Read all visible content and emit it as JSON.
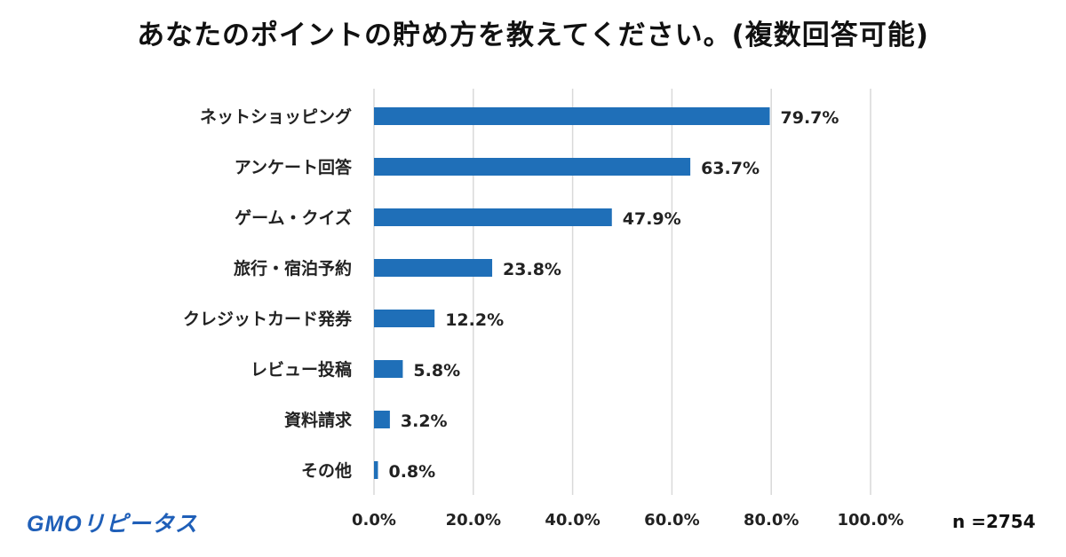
{
  "title": "あなたのポイントの貯め方を教えてください。(複数回答可能)",
  "logo": "GMOリピータス",
  "sample_size": "n =2754",
  "colors": {
    "bar": "#1f6fb8",
    "grid": "#d9d9d9"
  },
  "chart_data": {
    "type": "bar",
    "orientation": "horizontal",
    "title": "あなたのポイントの貯め方を教えてください。(複数回答可能)",
    "categories": [
      "ネットショッピング",
      "アンケート回答",
      "ゲーム・クイズ",
      "旅行・宿泊予約",
      "クレジットカード発券",
      "レビュー投稿",
      "資料請求",
      "その他"
    ],
    "values": [
      79.7,
      63.7,
      47.9,
      23.8,
      12.2,
      5.8,
      3.2,
      0.8
    ],
    "value_labels": [
      "79.7%",
      "63.7%",
      "47.9%",
      "23.8%",
      "12.2%",
      "5.8%",
      "3.2%",
      "0.8%"
    ],
    "xlim": [
      0,
      100
    ],
    "xticks": [
      0,
      20,
      40,
      60,
      80,
      100
    ],
    "xtick_labels": [
      "0.0%",
      "20.0%",
      "40.0%",
      "60.0%",
      "80.0%",
      "100.0%"
    ],
    "grid": true,
    "xlabel": "",
    "ylabel": ""
  }
}
